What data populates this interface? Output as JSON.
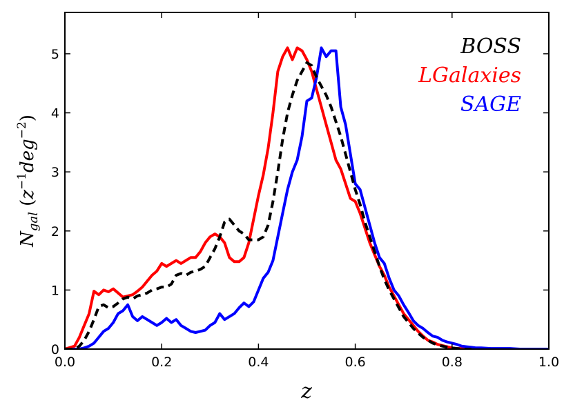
{
  "chart_data": {
    "type": "line",
    "title": "",
    "xlabel": "z",
    "ylabel": {
      "main": "N",
      "sub": "gal",
      "open": " (",
      "z": "z",
      "zexp": "−1",
      "deg": "deg",
      "degexp": "−2",
      "close": ")"
    },
    "xlim": [
      0.0,
      1.0
    ],
    "ylim": [
      0.0,
      5.7
    ],
    "xticks": [
      0.0,
      0.2,
      0.4,
      0.6,
      0.8,
      1.0
    ],
    "xtick_labels": [
      "0.0",
      "0.2",
      "0.4",
      "0.6",
      "0.8",
      "1.0"
    ],
    "yticks": [
      0,
      1,
      2,
      3,
      4,
      5
    ],
    "ytick_labels": [
      "0",
      "1",
      "2",
      "3",
      "4",
      "5"
    ],
    "legend_position": "top-right",
    "series": [
      {
        "name": "BOSS",
        "color": "#000000",
        "dash": "dashed",
        "x": [
          0.0,
          0.02,
          0.03,
          0.04,
          0.05,
          0.06,
          0.07,
          0.08,
          0.09,
          0.1,
          0.11,
          0.12,
          0.13,
          0.14,
          0.15,
          0.16,
          0.17,
          0.18,
          0.19,
          0.2,
          0.21,
          0.22,
          0.23,
          0.24,
          0.25,
          0.26,
          0.27,
          0.28,
          0.29,
          0.3,
          0.31,
          0.32,
          0.33,
          0.34,
          0.35,
          0.36,
          0.37,
          0.38,
          0.39,
          0.4,
          0.41,
          0.42,
          0.43,
          0.44,
          0.45,
          0.46,
          0.47,
          0.48,
          0.49,
          0.5,
          0.51,
          0.52,
          0.53,
          0.54,
          0.55,
          0.56,
          0.57,
          0.58,
          0.59,
          0.6,
          0.61,
          0.62,
          0.63,
          0.64,
          0.65,
          0.66,
          0.67,
          0.68,
          0.69,
          0.7,
          0.71,
          0.72,
          0.73,
          0.74,
          0.75,
          0.76,
          0.77,
          0.78,
          0.79,
          0.8,
          0.81,
          0.82,
          0.83,
          0.84
        ],
        "y": [
          0.0,
          0.0,
          0.05,
          0.15,
          0.3,
          0.5,
          0.72,
          0.75,
          0.7,
          0.72,
          0.78,
          0.85,
          0.88,
          0.85,
          0.9,
          0.92,
          0.95,
          1.0,
          1.02,
          1.05,
          1.05,
          1.1,
          1.25,
          1.28,
          1.25,
          1.3,
          1.32,
          1.35,
          1.4,
          1.55,
          1.7,
          1.9,
          2.15,
          2.2,
          2.1,
          2.0,
          1.95,
          1.85,
          1.85,
          1.85,
          1.9,
          2.1,
          2.5,
          3.0,
          3.55,
          4.0,
          4.3,
          4.55,
          4.7,
          4.85,
          4.8,
          4.6,
          4.45,
          4.3,
          4.1,
          3.85,
          3.6,
          3.3,
          3.0,
          2.7,
          2.45,
          2.15,
          1.9,
          1.65,
          1.4,
          1.18,
          1.0,
          0.85,
          0.7,
          0.55,
          0.45,
          0.35,
          0.27,
          0.2,
          0.15,
          0.1,
          0.07,
          0.05,
          0.03,
          0.02,
          0.01,
          0.0,
          0.0,
          0.0
        ]
      },
      {
        "name": "LGalaxies",
        "color": "#ff0000",
        "dash": "solid",
        "x": [
          0.0,
          0.02,
          0.03,
          0.04,
          0.05,
          0.06,
          0.07,
          0.08,
          0.09,
          0.1,
          0.11,
          0.12,
          0.13,
          0.14,
          0.15,
          0.16,
          0.17,
          0.18,
          0.19,
          0.2,
          0.21,
          0.22,
          0.23,
          0.24,
          0.25,
          0.26,
          0.27,
          0.28,
          0.29,
          0.3,
          0.31,
          0.32,
          0.33,
          0.34,
          0.35,
          0.36,
          0.37,
          0.38,
          0.39,
          0.4,
          0.41,
          0.42,
          0.43,
          0.44,
          0.45,
          0.46,
          0.47,
          0.48,
          0.49,
          0.5,
          0.51,
          0.52,
          0.53,
          0.54,
          0.55,
          0.56,
          0.57,
          0.58,
          0.59,
          0.6,
          0.61,
          0.62,
          0.63,
          0.64,
          0.65,
          0.66,
          0.67,
          0.68,
          0.69,
          0.7,
          0.71,
          0.72,
          0.73,
          0.74,
          0.75,
          0.76,
          0.77,
          0.78,
          0.79,
          0.8,
          0.81,
          0.82,
          0.83,
          0.84,
          0.85
        ],
        "y": [
          0.0,
          0.05,
          0.2,
          0.4,
          0.6,
          0.98,
          0.92,
          1.0,
          0.97,
          1.02,
          0.95,
          0.88,
          0.9,
          0.92,
          0.98,
          1.05,
          1.15,
          1.25,
          1.32,
          1.45,
          1.4,
          1.45,
          1.5,
          1.45,
          1.5,
          1.55,
          1.55,
          1.65,
          1.8,
          1.9,
          1.95,
          1.9,
          1.8,
          1.55,
          1.48,
          1.48,
          1.55,
          1.8,
          2.2,
          2.6,
          2.95,
          3.4,
          4.0,
          4.7,
          4.95,
          5.1,
          4.9,
          5.1,
          5.05,
          4.9,
          4.7,
          4.4,
          4.1,
          3.8,
          3.5,
          3.2,
          3.05,
          2.8,
          2.55,
          2.5,
          2.3,
          2.05,
          1.8,
          1.6,
          1.4,
          1.25,
          1.05,
          0.9,
          0.75,
          0.6,
          0.5,
          0.4,
          0.3,
          0.22,
          0.15,
          0.12,
          0.08,
          0.06,
          0.04,
          0.02,
          0.01,
          0.01,
          0.0,
          0.0,
          0.0
        ]
      },
      {
        "name": "SAGE",
        "color": "#0000ff",
        "dash": "solid",
        "x": [
          0.0,
          0.03,
          0.04,
          0.05,
          0.06,
          0.07,
          0.08,
          0.09,
          0.1,
          0.11,
          0.12,
          0.13,
          0.14,
          0.15,
          0.16,
          0.17,
          0.18,
          0.19,
          0.2,
          0.21,
          0.22,
          0.23,
          0.24,
          0.25,
          0.26,
          0.27,
          0.28,
          0.29,
          0.3,
          0.31,
          0.32,
          0.33,
          0.34,
          0.35,
          0.36,
          0.37,
          0.38,
          0.39,
          0.4,
          0.41,
          0.42,
          0.43,
          0.44,
          0.45,
          0.46,
          0.47,
          0.48,
          0.49,
          0.5,
          0.51,
          0.52,
          0.53,
          0.54,
          0.55,
          0.56,
          0.57,
          0.58,
          0.59,
          0.6,
          0.61,
          0.62,
          0.63,
          0.64,
          0.65,
          0.66,
          0.67,
          0.68,
          0.69,
          0.7,
          0.71,
          0.72,
          0.73,
          0.74,
          0.75,
          0.76,
          0.77,
          0.78,
          0.79,
          0.8,
          0.81,
          0.82,
          0.83,
          0.84,
          0.85,
          0.86,
          0.88,
          0.9,
          0.92,
          0.94,
          0.96,
          0.98,
          1.0
        ],
        "y": [
          0.0,
          0.0,
          0.02,
          0.05,
          0.1,
          0.2,
          0.3,
          0.35,
          0.45,
          0.6,
          0.65,
          0.75,
          0.55,
          0.48,
          0.55,
          0.5,
          0.45,
          0.4,
          0.45,
          0.52,
          0.45,
          0.5,
          0.4,
          0.35,
          0.3,
          0.28,
          0.3,
          0.32,
          0.4,
          0.45,
          0.6,
          0.5,
          0.55,
          0.6,
          0.7,
          0.78,
          0.72,
          0.8,
          1.0,
          1.2,
          1.3,
          1.5,
          1.9,
          2.3,
          2.7,
          3.0,
          3.2,
          3.6,
          4.2,
          4.25,
          4.6,
          5.1,
          4.95,
          5.05,
          5.05,
          4.1,
          3.8,
          3.3,
          2.8,
          2.7,
          2.4,
          2.1,
          1.8,
          1.55,
          1.45,
          1.2,
          1.0,
          0.9,
          0.75,
          0.62,
          0.48,
          0.4,
          0.35,
          0.28,
          0.22,
          0.2,
          0.15,
          0.12,
          0.1,
          0.08,
          0.05,
          0.04,
          0.03,
          0.02,
          0.02,
          0.01,
          0.01,
          0.01,
          0.0,
          0.0,
          0.0,
          0.0
        ]
      }
    ]
  }
}
